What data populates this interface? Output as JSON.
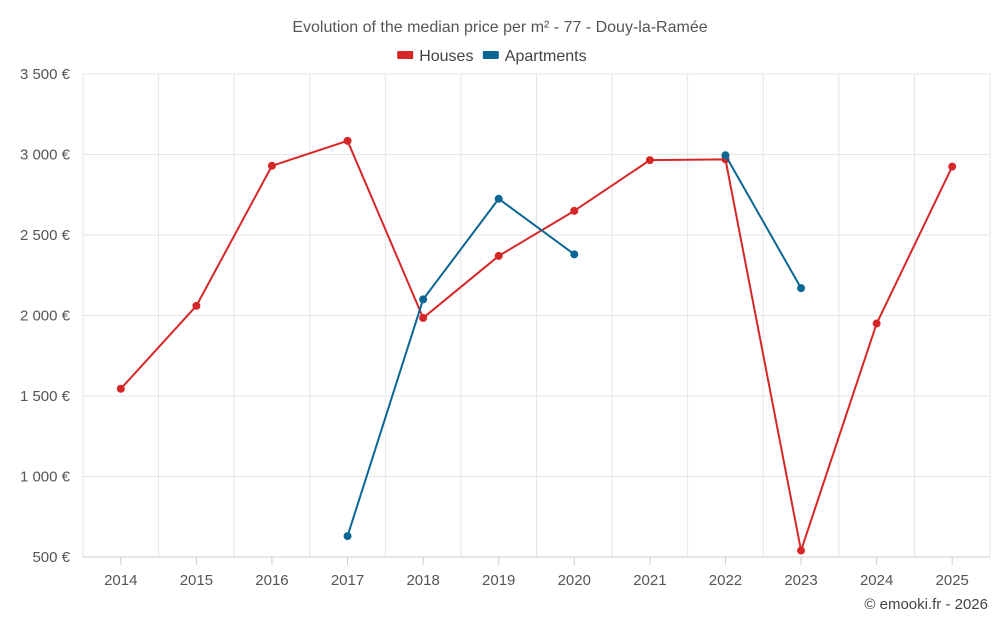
{
  "chart_data": {
    "type": "line",
    "title": "Evolution of the median price per m² - 77 - Douy-la-Ramée",
    "categories": [
      "2014",
      "2015",
      "2016",
      "2017",
      "2018",
      "2019",
      "2020",
      "2021",
      "2022",
      "2023",
      "2024",
      "2025"
    ],
    "ylim": [
      500,
      3500
    ],
    "y_ticks": [
      500,
      1000,
      1500,
      2000,
      2500,
      3000,
      3500
    ],
    "y_tick_labels": [
      "500 €",
      "1 000 €",
      "1 500 €",
      "2 000 €",
      "2 500 €",
      "3 000 €",
      "3 500 €"
    ],
    "grid": true,
    "legend_position": "top-center",
    "series": [
      {
        "name": "Houses",
        "color": "#d62728",
        "values": [
          1545,
          2060,
          2930,
          3085,
          1985,
          2370,
          2650,
          2965,
          2970,
          540,
          1950,
          2925
        ]
      },
      {
        "name": "Apartments",
        "color": "#0b6694",
        "values": [
          null,
          null,
          null,
          630,
          2100,
          2725,
          2380,
          null,
          2995,
          2170,
          null,
          null
        ]
      }
    ]
  },
  "credit": "© emooki.fr - 2026"
}
